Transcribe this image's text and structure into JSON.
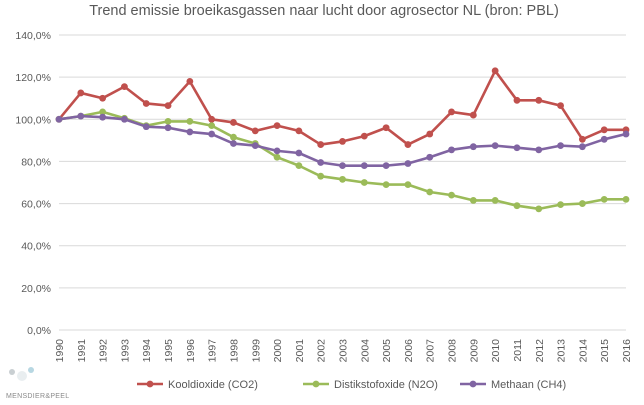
{
  "chart_data": {
    "type": "line",
    "title": "Trend emissie broeikasgassen naar lucht door agrosector NL (bron: PBL)",
    "xlabel": "",
    "ylabel": "",
    "categories": [
      "1990",
      "1991",
      "1992",
      "1993",
      "1994",
      "1995",
      "1996",
      "1997",
      "1998",
      "1999",
      "2000",
      "2001",
      "2002",
      "2003",
      "2004",
      "2005",
      "2006",
      "2007",
      "2008",
      "2009",
      "2010",
      "2011",
      "2012",
      "2013",
      "2014",
      "2015",
      "2016"
    ],
    "ylim": [
      0,
      140
    ],
    "yticks": [
      "0,0%",
      "20,0%",
      "40,0%",
      "60,0%",
      "80,0%",
      "100,0%",
      "120,0%",
      "140,0%"
    ],
    "grid": true,
    "legend_position": "bottom",
    "series": [
      {
        "name": "Kooldioxide (CO2)",
        "color": "#c0504d",
        "values": [
          100,
          112.5,
          110,
          115.5,
          107.5,
          106.5,
          118,
          100,
          98.5,
          94.5,
          97,
          94.5,
          88,
          89.5,
          92,
          96,
          88,
          93,
          103.5,
          102,
          123,
          109,
          109,
          106.5,
          90.5,
          95,
          95
        ]
      },
      {
        "name": "Distikstofoxide (N2O)",
        "color": "#9bbb59",
        "values": [
          100,
          101.5,
          103.5,
          100.5,
          97,
          99,
          99,
          97,
          91.5,
          88.5,
          82,
          78,
          73,
          71.5,
          70,
          69,
          69,
          65.5,
          64,
          61.5,
          61.5,
          59,
          57.5,
          59.5,
          60,
          62,
          62
        ]
      },
      {
        "name": "Methaan (CH4)",
        "color": "#8064a2",
        "values": [
          100,
          101.5,
          101,
          100,
          96.5,
          96,
          94,
          93,
          88.5,
          87.5,
          85,
          84,
          79.5,
          78,
          78,
          78,
          79,
          82,
          85.5,
          87,
          87.5,
          86.5,
          85.5,
          87.5,
          87,
          90.5,
          93
        ]
      }
    ]
  },
  "logo": {
    "text": "MENSDIER&PEEL",
    "icon": "sheep-people-logo-icon"
  }
}
